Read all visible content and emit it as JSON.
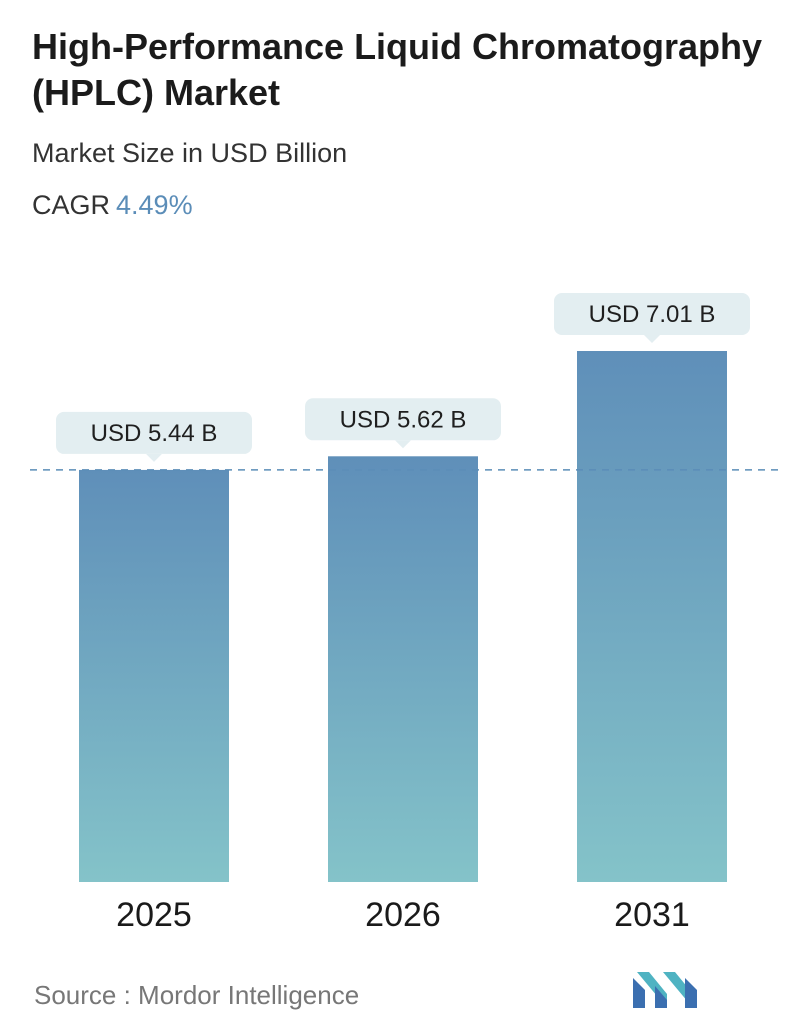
{
  "header": {
    "title": "High-Performance Liquid Chromatography (HPLC) Market",
    "subtitle": "Market Size in USD Billion",
    "cagr_label": "CAGR",
    "cagr_value": "4.49%"
  },
  "chart_data": {
    "type": "bar",
    "categories": [
      "2025",
      "2026",
      "2031"
    ],
    "values": [
      5.44,
      5.62,
      7.01
    ],
    "value_labels": [
      "USD 5.44 B",
      "USD 5.62 B",
      "USD 7.01 B"
    ],
    "title": "High-Performance Liquid Chromatography (HPLC) Market",
    "subtitle": "Market Size in USD Billion",
    "xlabel": "",
    "ylabel": "",
    "grid": false,
    "reference_line": 5.44,
    "colors": {
      "bar_top": "#5f8fb9",
      "bar_bottom": "#84c3c9",
      "label_bg": "#e3eef1",
      "dashed_line": "#5b8db8"
    }
  },
  "footer": {
    "source": "Source :  Mordor Intelligence",
    "logo_icon": "mordor-intelligence-logo-icon"
  }
}
